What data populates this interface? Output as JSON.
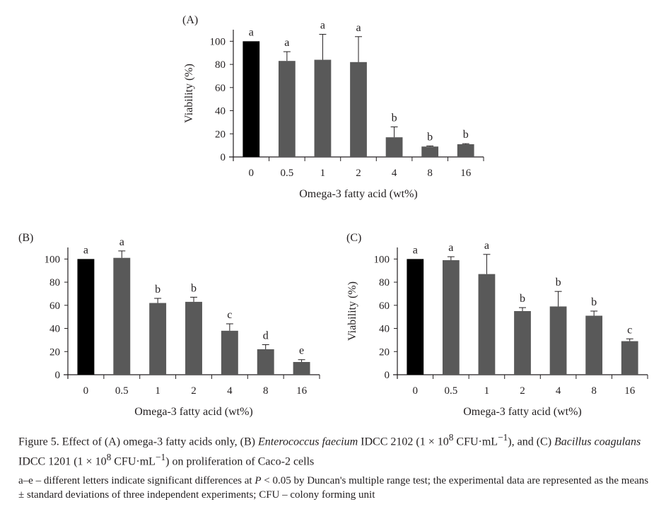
{
  "chart_data": [
    {
      "type": "bar",
      "panel_label": "(A)",
      "categories": [
        "0",
        "0.5",
        "1",
        "2",
        "4",
        "8",
        "16"
      ],
      "values": [
        100,
        83,
        84,
        82,
        17,
        9,
        11
      ],
      "errors": [
        0,
        8,
        22,
        22,
        9,
        0.5,
        0.5
      ],
      "significance": [
        "a",
        "a",
        "a",
        "a",
        "b",
        "b",
        "b"
      ],
      "colors": [
        "#000000",
        "#595959",
        "#595959",
        "#595959",
        "#595959",
        "#595959",
        "#595959"
      ],
      "xlabel": "Omega-3 fatty acid (wt%)",
      "ylabel": "Viability (%)",
      "yticks": [
        0,
        20,
        40,
        60,
        80,
        100
      ],
      "ylim": [
        0,
        110
      ],
      "grid": false
    },
    {
      "type": "bar",
      "panel_label": "(B)",
      "categories": [
        "0",
        "0.5",
        "1",
        "2",
        "4",
        "8",
        "16"
      ],
      "values": [
        100,
        101,
        62,
        63,
        38,
        22,
        11
      ],
      "errors": [
        0,
        6,
        4,
        4,
        6,
        4,
        2
      ],
      "significance": [
        "a",
        "a",
        "b",
        "b",
        "c",
        "d",
        "e"
      ],
      "colors": [
        "#000000",
        "#595959",
        "#595959",
        "#595959",
        "#595959",
        "#595959",
        "#595959"
      ],
      "xlabel": "Omega-3 fatty acid (wt%)",
      "ylabel": "",
      "yticks": [
        0,
        20,
        40,
        60,
        80,
        100
      ],
      "ylim": [
        0,
        110
      ],
      "grid": false
    },
    {
      "type": "bar",
      "panel_label": "(C)",
      "categories": [
        "0",
        "0.5",
        "1",
        "2",
        "4",
        "8",
        "16"
      ],
      "values": [
        100,
        99,
        87,
        55,
        59,
        51,
        29
      ],
      "errors": [
        0,
        3,
        17,
        3,
        13,
        4,
        2
      ],
      "significance": [
        "a",
        "a",
        "a",
        "b",
        "b",
        "b",
        "c"
      ],
      "colors": [
        "#000000",
        "#595959",
        "#595959",
        "#595959",
        "#595959",
        "#595959",
        "#595959"
      ],
      "xlabel": "Omega-3 fatty acid (wt%)",
      "ylabel": "Viability (%)",
      "yticks": [
        0,
        20,
        40,
        60,
        80,
        100
      ],
      "ylim": [
        0,
        110
      ],
      "grid": false
    }
  ],
  "caption": {
    "p1": "Figure 5. Effect of (A) omega-3 fatty acids only, (B) ",
    "species1": "Enterococcus faecium",
    "p2": " IDCC 2102 (1 × 10",
    "exp1": "8",
    "p3": " CFU·mL",
    "exp2": "−1",
    "p4": "), and (C) ",
    "species2": "Bacillus coagulans",
    "p5": " IDCC 1201 (1 × 10",
    "exp3": "8",
    "p6": " CFU·mL",
    "exp4": "−1",
    "p7": ") on proliferation of Caco-2 cells"
  },
  "note": {
    "p1": "a–e – different letters indicate significant differences at ",
    "pvar": "P",
    "p2": " < 0.05 by Duncan's multiple range test; the experimental data are represented as the means ± standard deviations of three independent experiments; CFU – colony forming unit"
  }
}
